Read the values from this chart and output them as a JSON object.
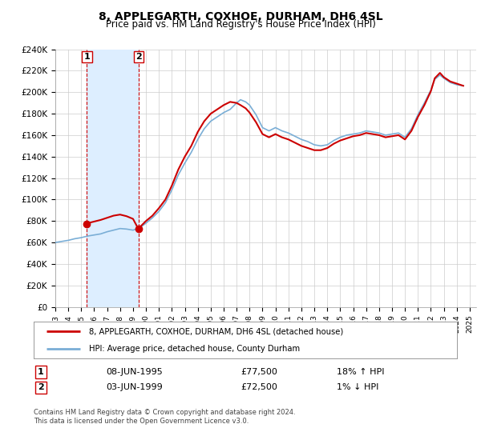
{
  "title": "8, APPLEGARTH, COXHOE, DURHAM, DH6 4SL",
  "subtitle": "Price paid vs. HM Land Registry's House Price Index (HPI)",
  "ylim": [
    0,
    240000
  ],
  "xlim": [
    1993.0,
    2025.5
  ],
  "yticks": [
    0,
    20000,
    40000,
    60000,
    80000,
    100000,
    120000,
    140000,
    160000,
    180000,
    200000,
    220000,
    240000
  ],
  "ytick_labels": [
    "£0",
    "£20K",
    "£40K",
    "£60K",
    "£80K",
    "£100K",
    "£120K",
    "£140K",
    "£160K",
    "£180K",
    "£200K",
    "£220K",
    "£240K"
  ],
  "sale1_x": 1995.44,
  "sale1_y": 77500,
  "sale2_x": 1999.42,
  "sale2_y": 72500,
  "sale1_date": "08-JUN-1995",
  "sale1_price": "£77,500",
  "sale1_hpi": "18% ↑ HPI",
  "sale2_date": "03-JUN-1999",
  "sale2_price": "£72,500",
  "sale2_hpi": "1% ↓ HPI",
  "shaded_region_start": 1995.44,
  "shaded_region_end": 1999.42,
  "legend_line1": "8, APPLEGARTH, COXHOE, DURHAM, DH6 4SL (detached house)",
  "legend_line2": "HPI: Average price, detached house, County Durham",
  "footer_line1": "Contains HM Land Registry data © Crown copyright and database right 2024.",
  "footer_line2": "This data is licensed under the Open Government Licence v3.0.",
  "red_color": "#cc0000",
  "blue_color": "#7aaed6",
  "shaded_color": "#ddeeff",
  "background_color": "#ffffff",
  "grid_color": "#cccccc"
}
